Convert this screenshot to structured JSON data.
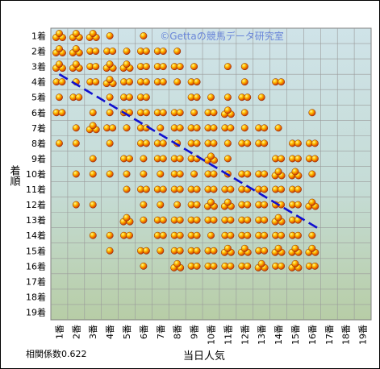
{
  "chart_data": {
    "type": "scatter",
    "title": "",
    "watermark": "©Gettaの競馬データ研究室",
    "xlabel": "当日人気",
    "ylabel": "着順",
    "x_categories": [
      "1番",
      "2番",
      "3番",
      "4番",
      "5番",
      "6番",
      "7番",
      "8番",
      "9番",
      "10番",
      "11番",
      "12番",
      "13番",
      "14番",
      "15番",
      "16番",
      "17番",
      "18番",
      "19番"
    ],
    "y_categories": [
      "1着",
      "2着",
      "3着",
      "4着",
      "5着",
      "6着",
      "7着",
      "8着",
      "9着",
      "10着",
      "11着",
      "12着",
      "13着",
      "14着",
      "15着",
      "16着",
      "17着",
      "18着",
      "19着"
    ],
    "xlim": [
      0,
      19
    ],
    "ylim": [
      0,
      19
    ],
    "correlation_label": "相関係数0.622",
    "trendline": {
      "style": "dashed",
      "color": "#1010d0",
      "x": [
        1,
        16.3
      ],
      "y": [
        3.5,
        13.5
      ]
    },
    "colors": {
      "marker_outer": "#e05a00",
      "marker_inner": "#ffd000",
      "plot_top": "#cfe3e8",
      "plot_bottom": "#b9cfa9",
      "grid": "#9a9a9a"
    },
    "x_count": [
      [
        1,
        1,
        3
      ],
      [
        1,
        2,
        3
      ],
      [
        1,
        3,
        3
      ],
      [
        1,
        4,
        2
      ],
      [
        1,
        5,
        1
      ],
      [
        1,
        6,
        2
      ],
      [
        1,
        8,
        1
      ],
      [
        2,
        1,
        3
      ],
      [
        2,
        2,
        3
      ],
      [
        2,
        3,
        3
      ],
      [
        2,
        4,
        1
      ],
      [
        2,
        5,
        2
      ],
      [
        2,
        7,
        1
      ],
      [
        2,
        8,
        1
      ],
      [
        2,
        10,
        1
      ],
      [
        2,
        12,
        1
      ],
      [
        3,
        1,
        3
      ],
      [
        3,
        2,
        2
      ],
      [
        3,
        3,
        2
      ],
      [
        3,
        4,
        2
      ],
      [
        3,
        6,
        1
      ],
      [
        3,
        7,
        3
      ],
      [
        3,
        9,
        1
      ],
      [
        3,
        10,
        1
      ],
      [
        3,
        12,
        1
      ],
      [
        3,
        14,
        1
      ],
      [
        4,
        1,
        1
      ],
      [
        4,
        2,
        2
      ],
      [
        4,
        3,
        3
      ],
      [
        4,
        4,
        3
      ],
      [
        4,
        5,
        1
      ],
      [
        4,
        6,
        1
      ],
      [
        4,
        7,
        2
      ],
      [
        4,
        8,
        1
      ],
      [
        4,
        10,
        1
      ],
      [
        4,
        14,
        1
      ],
      [
        4,
        15,
        1
      ],
      [
        5,
        2,
        1
      ],
      [
        5,
        3,
        3
      ],
      [
        5,
        4,
        2
      ],
      [
        5,
        5,
        2
      ],
      [
        5,
        6,
        2
      ],
      [
        5,
        7,
        1
      ],
      [
        5,
        9,
        2
      ],
      [
        5,
        10,
        1
      ],
      [
        5,
        11,
        1
      ],
      [
        5,
        13,
        3
      ],
      [
        5,
        14,
        2
      ],
      [
        6,
        1,
        1
      ],
      [
        6,
        2,
        2
      ],
      [
        6,
        3,
        2
      ],
      [
        6,
        4,
        2
      ],
      [
        6,
        5,
        2
      ],
      [
        6,
        6,
        2
      ],
      [
        6,
        7,
        2
      ],
      [
        6,
        8,
        2
      ],
      [
        6,
        9,
        1
      ],
      [
        6,
        10,
        1
      ],
      [
        6,
        11,
        2
      ],
      [
        6,
        12,
        1
      ],
      [
        6,
        13,
        1
      ],
      [
        6,
        15,
        2
      ],
      [
        6,
        16,
        1
      ],
      [
        7,
        2,
        2
      ],
      [
        7,
        3,
        2
      ],
      [
        7,
        4,
        2
      ],
      [
        7,
        6,
        2
      ],
      [
        7,
        7,
        1
      ],
      [
        7,
        8,
        2
      ],
      [
        7,
        9,
        2
      ],
      [
        7,
        10,
        1
      ],
      [
        7,
        11,
        2
      ],
      [
        7,
        12,
        1
      ],
      [
        7,
        13,
        2
      ],
      [
        7,
        14,
        2
      ],
      [
        7,
        15,
        1
      ],
      [
        8,
        2,
        1
      ],
      [
        8,
        3,
        2
      ],
      [
        8,
        4,
        1
      ],
      [
        8,
        6,
        2
      ],
      [
        8,
        7,
        2
      ],
      [
        8,
        8,
        1
      ],
      [
        8,
        9,
        2
      ],
      [
        8,
        10,
        2
      ],
      [
        8,
        11,
        2
      ],
      [
        8,
        12,
        1
      ],
      [
        8,
        13,
        2
      ],
      [
        8,
        14,
        2
      ],
      [
        8,
        15,
        2
      ],
      [
        8,
        16,
        3
      ],
      [
        9,
        3,
        1
      ],
      [
        9,
        4,
        2
      ],
      [
        9,
        5,
        2
      ],
      [
        9,
        6,
        1
      ],
      [
        9,
        7,
        2
      ],
      [
        9,
        8,
        2
      ],
      [
        9,
        9,
        2
      ],
      [
        9,
        10,
        1
      ],
      [
        9,
        11,
        2
      ],
      [
        9,
        12,
        2
      ],
      [
        9,
        13,
        2
      ],
      [
        9,
        14,
        2
      ],
      [
        9,
        15,
        2
      ],
      [
        9,
        16,
        2
      ],
      [
        10,
        5,
        1
      ],
      [
        10,
        6,
        2
      ],
      [
        10,
        7,
        2
      ],
      [
        10,
        8,
        2
      ],
      [
        10,
        9,
        3
      ],
      [
        10,
        10,
        2
      ],
      [
        10,
        11,
        2
      ],
      [
        10,
        12,
        3
      ],
      [
        10,
        13,
        2
      ],
      [
        10,
        14,
        1
      ],
      [
        10,
        15,
        2
      ],
      [
        10,
        16,
        2
      ],
      [
        11,
        3,
        1
      ],
      [
        11,
        5,
        1
      ],
      [
        11,
        6,
        3
      ],
      [
        11,
        7,
        2
      ],
      [
        11,
        8,
        1
      ],
      [
        11,
        9,
        1
      ],
      [
        11,
        10,
        1
      ],
      [
        11,
        11,
        2
      ],
      [
        11,
        12,
        3
      ],
      [
        11,
        13,
        2
      ],
      [
        11,
        14,
        2
      ],
      [
        11,
        15,
        3
      ],
      [
        11,
        16,
        2
      ],
      [
        12,
        3,
        1
      ],
      [
        12,
        4,
        1
      ],
      [
        12,
        5,
        2
      ],
      [
        12,
        6,
        1
      ],
      [
        12,
        7,
        1
      ],
      [
        12,
        8,
        2
      ],
      [
        12,
        10,
        2
      ],
      [
        12,
        11,
        2
      ],
      [
        12,
        12,
        2
      ],
      [
        12,
        13,
        2
      ],
      [
        12,
        14,
        2
      ],
      [
        12,
        15,
        3
      ],
      [
        12,
        16,
        2
      ],
      [
        13,
        5,
        1
      ],
      [
        13,
        7,
        2
      ],
      [
        13,
        8,
        2
      ],
      [
        13,
        10,
        2
      ],
      [
        13,
        11,
        2
      ],
      [
        13,
        12,
        2
      ],
      [
        13,
        13,
        2
      ],
      [
        13,
        14,
        2
      ],
      [
        13,
        15,
        2
      ],
      [
        13,
        16,
        3
      ],
      [
        14,
        4,
        2
      ],
      [
        14,
        7,
        1
      ],
      [
        14,
        9,
        2
      ],
      [
        14,
        10,
        3
      ],
      [
        14,
        11,
        2
      ],
      [
        14,
        12,
        2
      ],
      [
        14,
        13,
        3
      ],
      [
        14,
        14,
        2
      ],
      [
        14,
        15,
        3
      ],
      [
        14,
        16,
        2
      ],
      [
        15,
        8,
        2
      ],
      [
        15,
        9,
        2
      ],
      [
        15,
        10,
        3
      ],
      [
        15,
        11,
        2
      ],
      [
        15,
        12,
        2
      ],
      [
        15,
        13,
        2
      ],
      [
        15,
        14,
        2
      ],
      [
        15,
        15,
        3
      ],
      [
        15,
        16,
        3
      ],
      [
        16,
        6,
        1
      ],
      [
        16,
        8,
        2
      ],
      [
        16,
        9,
        2
      ],
      [
        16,
        10,
        1
      ],
      [
        16,
        12,
        3
      ],
      [
        16,
        14,
        1
      ],
      [
        16,
        15,
        3
      ],
      [
        16,
        16,
        2
      ]
    ]
  }
}
